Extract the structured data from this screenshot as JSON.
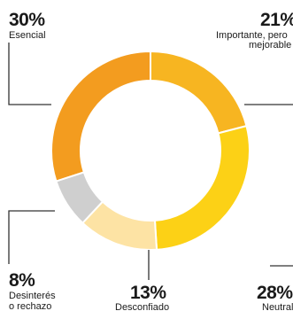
{
  "chart_data": {
    "type": "pie",
    "variant": "donut",
    "title": "",
    "categories": [
      "Esencial",
      "Importante, pero mejorable",
      "Neutral",
      "Desconfiado",
      "Desinterés o rechazo"
    ],
    "values": [
      30,
      21,
      28,
      13,
      8
    ],
    "labels": {
      "esencial": {
        "pct": "30%",
        "text": "Esencial"
      },
      "importante": {
        "pct": "21%",
        "line1": "Importante, pero",
        "line2": "mejorable"
      },
      "neutral": {
        "pct": "28%",
        "text": "Neutral"
      },
      "desconfiado": {
        "pct": "13%",
        "text": "Desconfiado"
      },
      "desinteres": {
        "pct": "8%",
        "line1": "Desinterés",
        "line2": "o rechazo"
      }
    },
    "colors": [
      "#f39c1f",
      "#f7b521",
      "#fcd116",
      "#fde3a4",
      "#cfcfcf"
    ],
    "leader_color": "#333333",
    "legend": "none"
  }
}
